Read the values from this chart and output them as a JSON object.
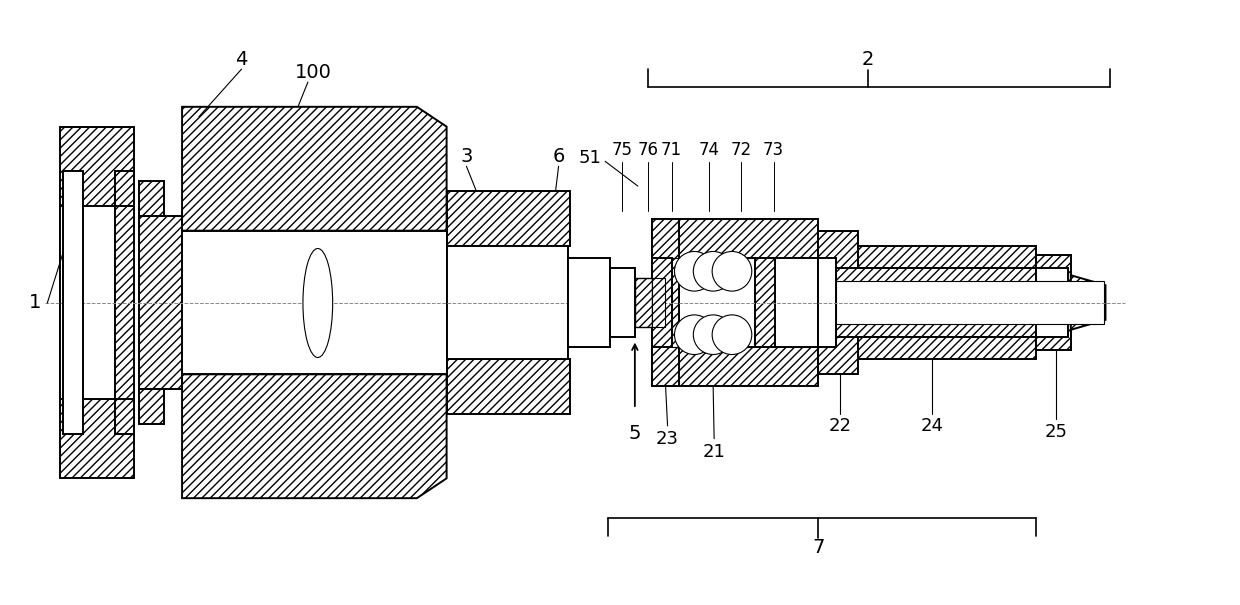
{
  "bg_color": "#ffffff",
  "line_color": "#000000",
  "fig_width": 12.4,
  "fig_height": 6.05
}
